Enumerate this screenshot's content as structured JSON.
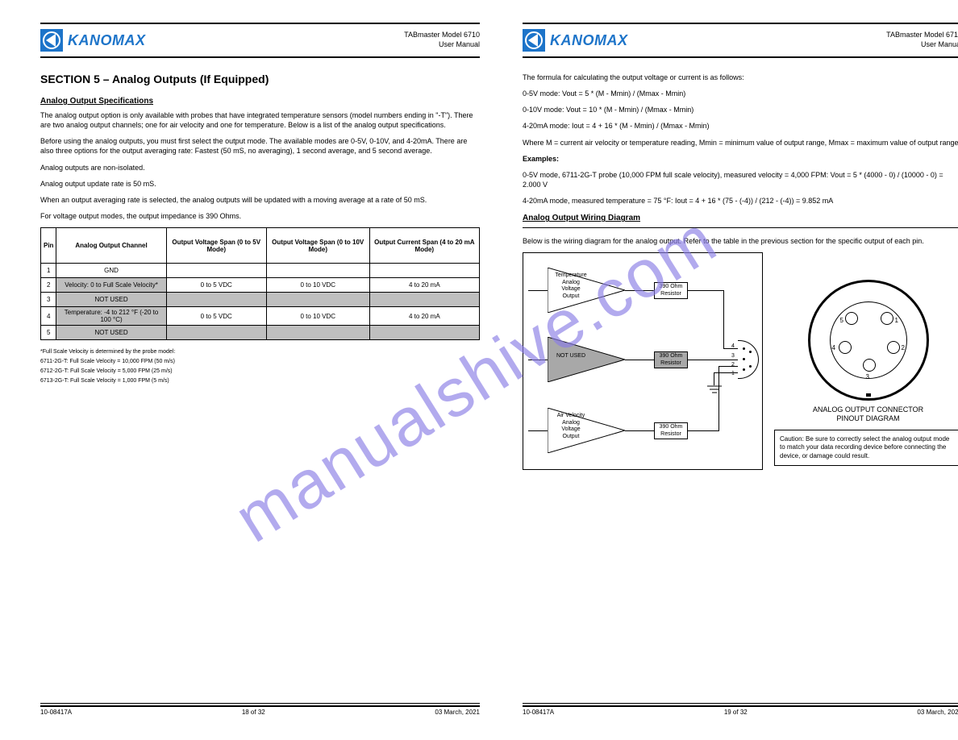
{
  "brand": "KANOMAX",
  "header_r1": "TABmaster Model 6710",
  "header_r2": "User Manual",
  "left": {
    "title": "SECTION 5 – Analog Outputs (If Equipped)",
    "sub": "Analog Output Specifications",
    "p1": "The analog output option is only available with probes that have integrated temperature sensors (model numbers ending in \"-T\"). There are two analog output channels; one for air velocity and one for temperature. Below is a list of the analog output specifications.",
    "p2": "Before using the analog outputs, you must first select the output mode. The available modes are 0-5V, 0-10V, and 4-20mA. There are also three options for the output averaging rate: Fastest (50 mS, no averaging), 1 second average, and 5 second average.",
    "li1": "Analog outputs are non-isolated.",
    "li2": "Analog output update rate is 50 mS.",
    "li3": "When an output averaging rate is selected, the analog outputs will be updated with a moving average at a rate of 50 mS.",
    "li4": "For voltage output modes, the output impedance is 390 Ohms.",
    "table_hdr": [
      "Pin",
      "Analog Output Channel",
      "Output Voltage Span (0 to 5V Mode)",
      "Output Voltage Span (0 to 10V Mode)",
      "Output Current Span (4 to 20 mA Mode)"
    ],
    "rows": [
      {
        "pin": "1",
        "ch": "GND",
        "a": "",
        "b": "",
        "c": "",
        "shade": []
      },
      {
        "pin": "2",
        "ch": "Velocity: 0 to Full Scale Velocity*",
        "a": "0 to 5 VDC",
        "b": "0 to 10 VDC",
        "c": "4 to 20 mA",
        "shade": [
          2
        ]
      },
      {
        "pin": "3",
        "ch": "NOT USED",
        "a": "",
        "b": "",
        "c": "",
        "shade": [
          2,
          3,
          4,
          5
        ]
      },
      {
        "pin": "4",
        "ch": "Temperature: -4 to 212 °F (-20 to 100 °C)",
        "a": "0 to 5 VDC",
        "b": "0 to 10 VDC",
        "c": "4 to 20 mA",
        "shade": [
          2
        ]
      },
      {
        "pin": "5",
        "ch": "NOT USED",
        "a": "",
        "b": "",
        "c": "",
        "shade": [
          2,
          3,
          4,
          5
        ]
      }
    ],
    "note1": "*Full Scale Velocity is determined by the probe model:",
    "note2": "6711-2G-T: Full Scale Velocity = 10,000 FPM (50 m/s)",
    "note3": "6712-2G-T: Full Scale Velocity = 5,000 FPM (25 m/s)",
    "note4": "6713-2G-T: Full Scale Velocity = 1,000 FPM (5 m/s)"
  },
  "right": {
    "p1": "The formula for calculating the output voltage or current is as follows:",
    "f_v5": "0-5V mode: Vout = 5 * (M - Mmin) / (Mmax - Mmin)",
    "f_v10": "0-10V mode: Vout = 10 * (M - Mmin) / (Mmax - Mmin)",
    "f_i": "4-20mA mode: Iout = 4 + 16 * (M - Mmin) / (Mmax - Mmin)",
    "p2": "Where M = current air velocity or temperature reading, Mmin = minimum value of output range, Mmax = maximum value of output range.",
    "ex_h": "Examples:",
    "ex1": "0-5V mode, 6711-2G-T probe (10,000 FPM full scale velocity), measured velocity = 4,000 FPM: Vout = 5 * (4000 - 0) / (10000 - 0) = 2.000 V",
    "ex2": "4-20mA mode, measured temperature = 75 °F: Iout = 4 + 16 * (75 - (-4)) / (212 - (-4)) = 9.852 mA",
    "sub": "Analog Output Wiring Diagram",
    "p3": "Below is the wiring diagram for the analog output. Refer to the table in the previous section for the specific output of each pin.",
    "amp1": "Temperature\nAnalog\nVoltage\nOutput",
    "amp2": "NOT USED",
    "amp3": "Air Velocity\nAnalog\nVoltage\nOutput",
    "res": "390 Ohm\nResistor",
    "conn_title": "ANALOG OUTPUT CONNECTOR\nPINOUT DIAGRAM",
    "caution": "Caution: Be sure to correctly select the analog output mode to match your data recording device before connecting the device, or damage could result."
  },
  "footer": {
    "l1": "10-08417A",
    "l2": "03 March, 2021",
    "lp": "18 of 32",
    "rp": "19 of 32"
  }
}
